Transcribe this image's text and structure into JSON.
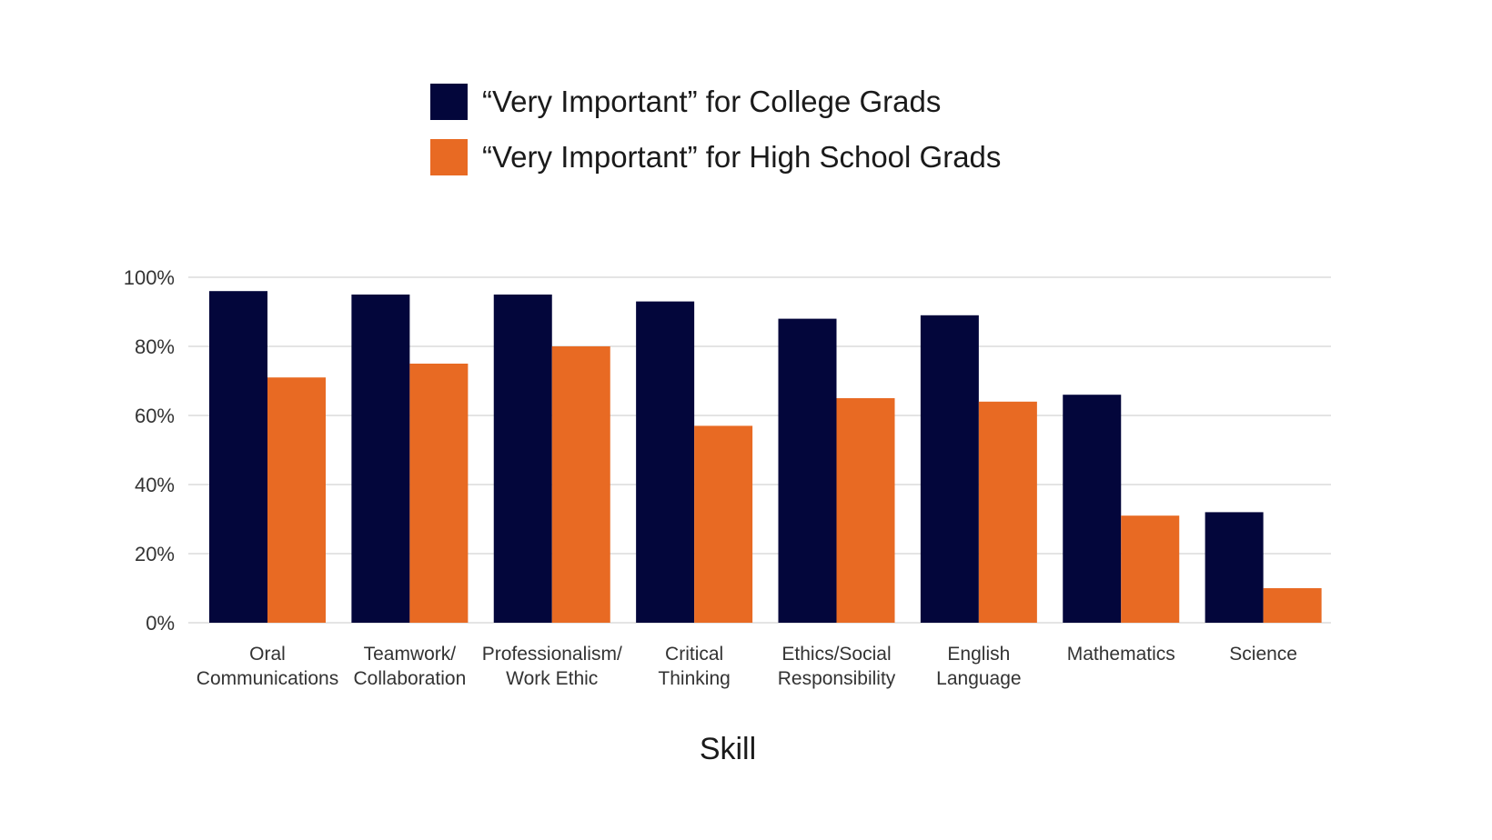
{
  "chart_data": {
    "type": "bar",
    "xlabel": "Skill",
    "ylabel": "",
    "ylim": [
      0,
      100
    ],
    "yticks": [
      0,
      20,
      40,
      60,
      80,
      100
    ],
    "ytick_labels": [
      "0%",
      "20%",
      "40%",
      "60%",
      "80%",
      "100%"
    ],
    "grid": true,
    "legend_position": "top-center",
    "categories": [
      [
        "Oral",
        "Communications"
      ],
      [
        "Teamwork/",
        "Collaboration"
      ],
      [
        "Professionalism/",
        "Work Ethic"
      ],
      [
        "Critical",
        "Thinking"
      ],
      [
        "Ethics/Social",
        "Responsibility"
      ],
      [
        "English",
        "Language"
      ],
      [
        "Mathematics"
      ],
      [
        "Science"
      ]
    ],
    "series": [
      {
        "name": "“Very Important” for College Grads",
        "color": "#03063b",
        "values": [
          96,
          95,
          95,
          93,
          88,
          89,
          66,
          32
        ]
      },
      {
        "name": "“Very Important” for High School Grads",
        "color": "#e86a23",
        "values": [
          71,
          75,
          80,
          57,
          65,
          64,
          31,
          10
        ]
      }
    ]
  }
}
